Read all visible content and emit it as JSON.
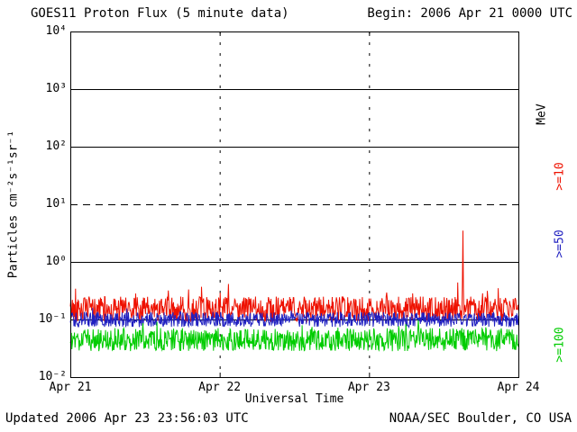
{
  "header": {
    "title": "GOES11 Proton Flux (5 minute data)",
    "begin_label": "Begin: 2006 Apr 21 0000 UTC"
  },
  "footer": {
    "updated": "Updated 2006 Apr 23 23:56:03 UTC",
    "credit": "NOAA/SEC Boulder, CO USA"
  },
  "chart_data": {
    "type": "line",
    "title": "GOES11 Proton Flux (5 minute data)",
    "xlabel": "Universal Time",
    "ylabel": "Particles cm⁻²s⁻¹sr⁻¹",
    "right_unit": "MeV",
    "y_scale": "log10",
    "y_log_min_exp": -2,
    "y_log_max_exp": 4,
    "y_ticks": [
      {
        "exp": 4,
        "label": "10⁴"
      },
      {
        "exp": 3,
        "label": "10³"
      },
      {
        "exp": 2,
        "label": "10²"
      },
      {
        "exp": 1,
        "label": "10¹"
      },
      {
        "exp": 0,
        "label": "10⁰"
      },
      {
        "exp": -1,
        "label": "10⁻¹"
      },
      {
        "exp": -2,
        "label": "10⁻²"
      }
    ],
    "x_range_days": 3,
    "x_ticks": [
      {
        "day": 0,
        "label": "Apr 21"
      },
      {
        "day": 1,
        "label": "Apr 22"
      },
      {
        "day": 2,
        "label": "Apr 23"
      },
      {
        "day": 3,
        "label": "Apr 24"
      }
    ],
    "grid": {
      "solid_exps": [
        3,
        2,
        0,
        -1
      ],
      "dashed_exps": [
        1
      ],
      "vline_days": [
        1,
        2
      ]
    },
    "points_per_day": 288,
    "seed": 42,
    "series": [
      {
        "name": ">=10 MeV protons",
        "label": ">=10",
        "color": "#ee1100",
        "baseline_log10": -0.82,
        "noise_log10": 0.22,
        "burst_prob": 0.06,
        "burst_log10": 0.35,
        "spike": {
          "day": 2.63,
          "peak": 3.5,
          "shoulder": 0.45
        }
      },
      {
        "name": ">=50 MeV protons",
        "label": ">=50",
        "color": "#2020c0",
        "baseline_log10": -1.0,
        "noise_log10": 0.13,
        "burst_prob": 0.02,
        "burst_log10": 0.15
      },
      {
        "name": ">=100 MeV protons",
        "label": ">=100",
        "color": "#00cc00",
        "baseline_log10": -1.35,
        "noise_log10": 0.2,
        "burst_prob": 0.03,
        "burst_log10": 0.18
      }
    ],
    "legend_position": "right"
  }
}
